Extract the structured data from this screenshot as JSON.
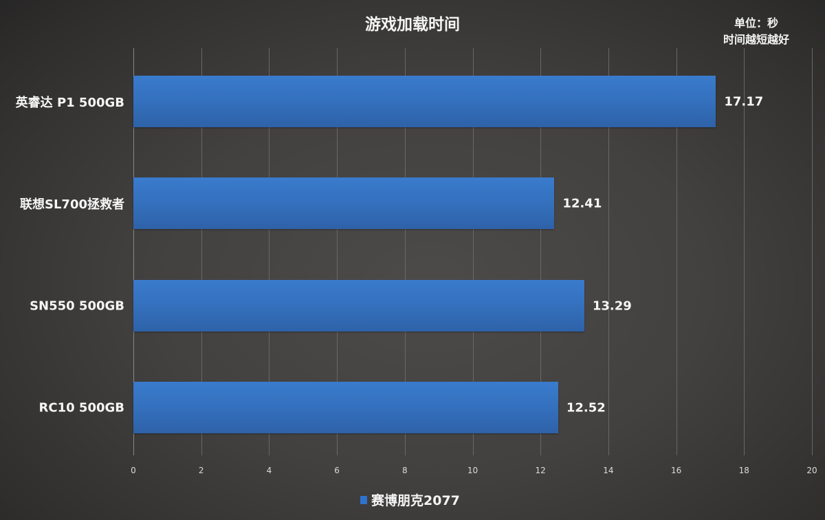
{
  "chart_data": {
    "type": "bar",
    "orientation": "horizontal",
    "title": "游戏加载时间",
    "annotation": [
      "单位：秒",
      "时间越短越好"
    ],
    "categories": [
      "英睿达 P1 500GB",
      "联想SL700拯救者",
      "SN550 500GB",
      "RC10 500GB"
    ],
    "series": [
      {
        "name": "赛博朋克2077",
        "values": [
          17.17,
          12.41,
          13.29,
          12.52
        ],
        "color": "#3470bd"
      }
    ],
    "xlabel": "",
    "ylabel": "",
    "xlim": [
      0,
      20
    ],
    "x_ticks": [
      "0",
      "2",
      "4",
      "6",
      "8",
      "10",
      "12",
      "14",
      "16",
      "18",
      "20"
    ],
    "grid": "vertical",
    "legend_position": "bottom",
    "data_labels": [
      "17.17",
      "12.41",
      "13.29",
      "12.52"
    ]
  },
  "title": "游戏加载时间",
  "unit_line1": "单位：秒",
  "unit_line2": "时间越短越好",
  "legend_label": "赛博朋克2077"
}
